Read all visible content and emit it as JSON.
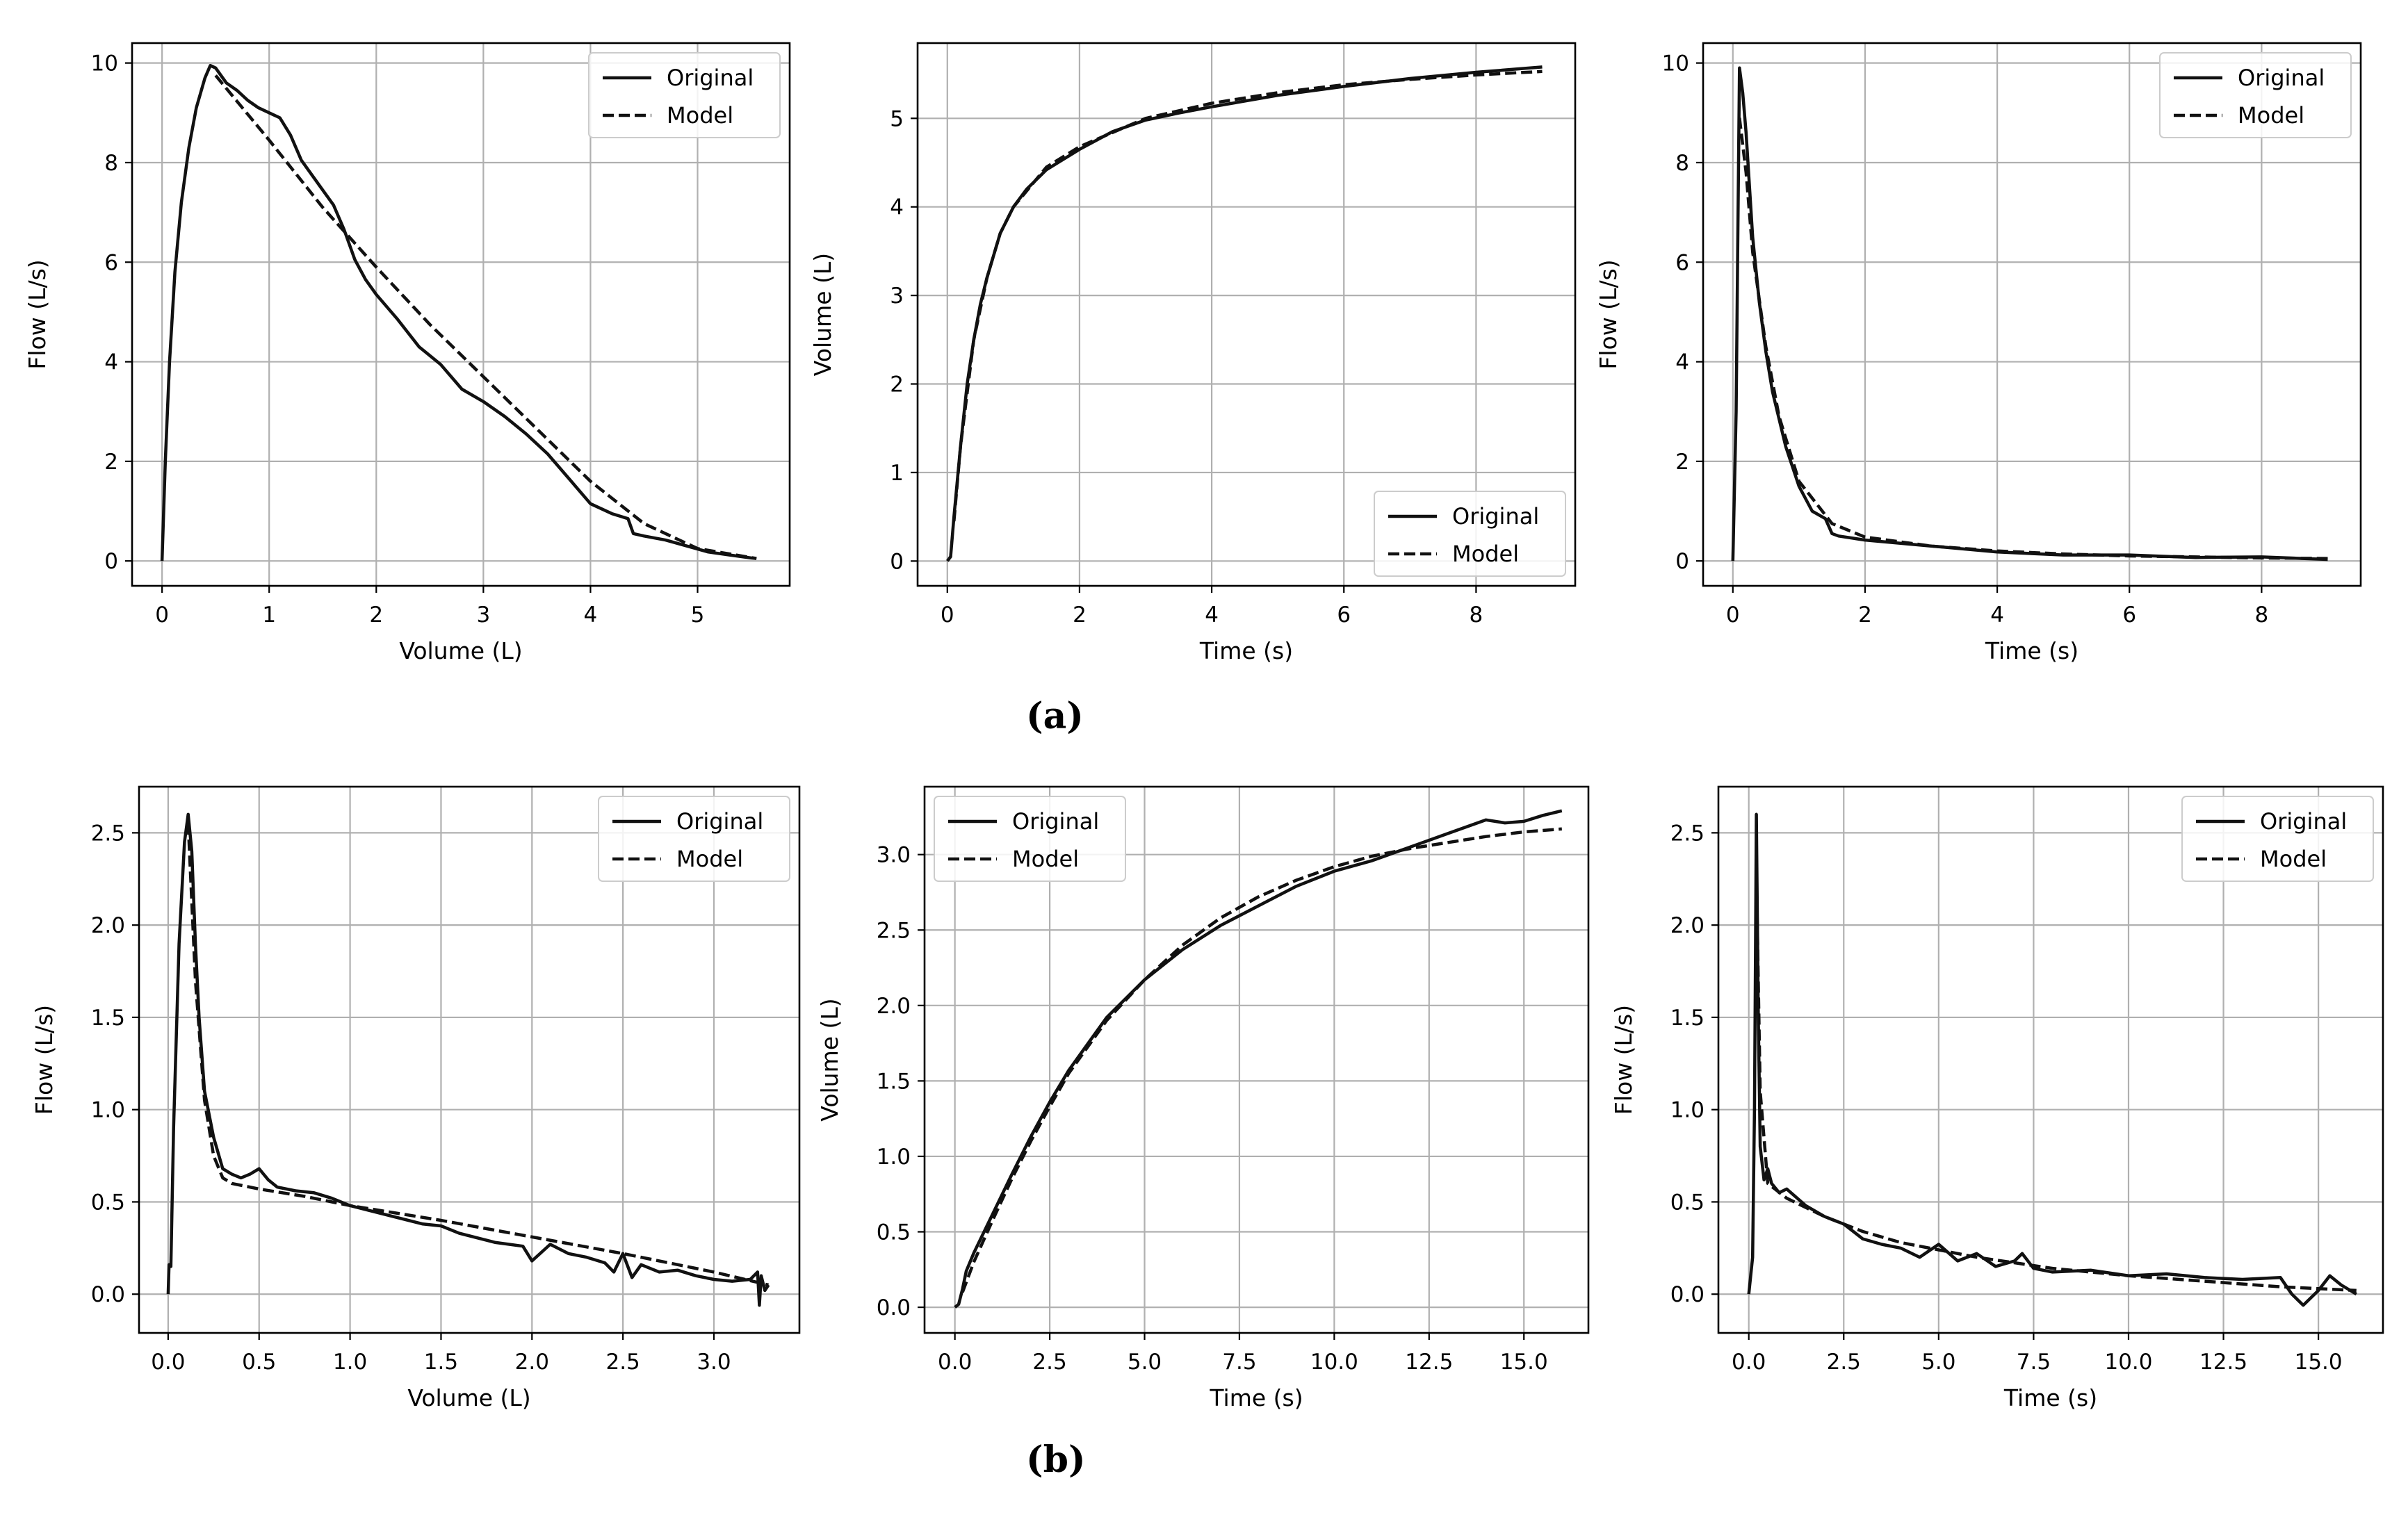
{
  "panel_labels": {
    "a": "(a)",
    "b": "(b)"
  },
  "colors": {
    "line": "#111111",
    "grid": "#b0b0b0",
    "axes": "#000000",
    "legend_border": "#cccccc"
  },
  "legend": {
    "original": "Original",
    "model": "Model"
  },
  "chart_data": [
    {
      "id": "a1",
      "type": "line",
      "xlabel": "Volume (L)",
      "ylabel": "Flow (L/s)",
      "xlim": [
        -0.28,
        5.86
      ],
      "ylim": [
        -0.5,
        10.4
      ],
      "xticks": [
        0,
        1,
        2,
        3,
        4,
        5
      ],
      "yticks": [
        0,
        2,
        4,
        6,
        8,
        10
      ],
      "xtick_labels": [
        "0",
        "1",
        "2",
        "3",
        "4",
        "5"
      ],
      "ytick_labels": [
        "0",
        "2",
        "4",
        "6",
        "8",
        "10"
      ],
      "legend_loc": "upper right",
      "series": [
        {
          "name": "Original",
          "style": "solid",
          "x": [
            0,
            0.03,
            0.07,
            0.12,
            0.18,
            0.25,
            0.32,
            0.4,
            0.45,
            0.5,
            0.6,
            0.7,
            0.8,
            0.9,
            1.0,
            1.1,
            1.2,
            1.3,
            1.4,
            1.5,
            1.6,
            1.7,
            1.8,
            1.9,
            2.0,
            2.2,
            2.4,
            2.6,
            2.8,
            3.0,
            3.2,
            3.4,
            3.6,
            3.8,
            4.0,
            4.2,
            4.35,
            4.4,
            4.5,
            4.7,
            4.9,
            5.1,
            5.3,
            5.5,
            5.55
          ],
          "y": [
            0,
            2.0,
            4.0,
            5.8,
            7.2,
            8.3,
            9.1,
            9.7,
            9.95,
            9.9,
            9.6,
            9.45,
            9.25,
            9.1,
            9.0,
            8.9,
            8.55,
            8.05,
            7.75,
            7.45,
            7.15,
            6.65,
            6.05,
            5.65,
            5.35,
            4.85,
            4.3,
            3.95,
            3.45,
            3.2,
            2.9,
            2.55,
            2.15,
            1.65,
            1.15,
            0.95,
            0.85,
            0.55,
            0.5,
            0.42,
            0.3,
            0.18,
            0.12,
            0.06,
            0.05
          ]
        },
        {
          "name": "Model",
          "style": "dashed",
          "x": [
            0.5,
            1.0,
            1.5,
            2.0,
            2.5,
            3.0,
            3.5,
            4.0,
            4.5,
            5.0,
            5.55
          ],
          "y": [
            9.75,
            8.45,
            7.1,
            5.9,
            4.75,
            3.7,
            2.65,
            1.6,
            0.75,
            0.25,
            0.05
          ]
        }
      ]
    },
    {
      "id": "a2",
      "type": "line",
      "xlabel": "Time (s)",
      "ylabel": "Volume (L)",
      "xlim": [
        -0.45,
        9.5
      ],
      "ylim": [
        -0.28,
        5.85
      ],
      "xticks": [
        0,
        2,
        4,
        6,
        8
      ],
      "yticks": [
        0,
        1,
        2,
        3,
        4,
        5
      ],
      "xtick_labels": [
        "0",
        "2",
        "4",
        "6",
        "8"
      ],
      "ytick_labels": [
        "0",
        "1",
        "2",
        "3",
        "4",
        "5"
      ],
      "legend_loc": "lower right",
      "series": [
        {
          "name": "Original",
          "style": "solid",
          "x": [
            0,
            0.05,
            0.1,
            0.2,
            0.3,
            0.4,
            0.5,
            0.6,
            0.8,
            1.0,
            1.2,
            1.5,
            2,
            2.5,
            3,
            3.5,
            4,
            5,
            6,
            7,
            8,
            9
          ],
          "y": [
            0,
            0.05,
            0.5,
            1.3,
            2.0,
            2.5,
            2.9,
            3.2,
            3.7,
            4.0,
            4.2,
            4.42,
            4.65,
            4.85,
            4.98,
            5.06,
            5.13,
            5.26,
            5.36,
            5.45,
            5.52,
            5.58
          ]
        },
        {
          "name": "Model",
          "style": "dashed",
          "x": [
            0.1,
            0.2,
            0.4,
            0.6,
            0.8,
            1.0,
            1.5,
            2,
            3,
            4,
            5,
            6,
            7,
            8,
            9
          ],
          "y": [
            0.45,
            1.3,
            2.5,
            3.2,
            3.7,
            4.0,
            4.45,
            4.68,
            5.0,
            5.17,
            5.29,
            5.38,
            5.44,
            5.49,
            5.53
          ]
        }
      ]
    },
    {
      "id": "a3",
      "type": "line",
      "xlabel": "Time (s)",
      "ylabel": "Flow (L/s)",
      "xlim": [
        -0.45,
        9.5
      ],
      "ylim": [
        -0.5,
        10.4
      ],
      "xticks": [
        0,
        2,
        4,
        6,
        8
      ],
      "yticks": [
        0,
        2,
        4,
        6,
        8,
        10
      ],
      "xtick_labels": [
        "0",
        "2",
        "4",
        "6",
        "8"
      ],
      "ytick_labels": [
        "0",
        "2",
        "4",
        "6",
        "8",
        "10"
      ],
      "legend_loc": "upper right",
      "series": [
        {
          "name": "Original",
          "style": "solid",
          "x": [
            0,
            0.05,
            0.1,
            0.15,
            0.2,
            0.3,
            0.4,
            0.5,
            0.6,
            0.8,
            1.0,
            1.2,
            1.4,
            1.5,
            1.6,
            2,
            3,
            4,
            5,
            6,
            7,
            8,
            9
          ],
          "y": [
            0,
            3,
            9.9,
            9.4,
            8.6,
            6.5,
            5.2,
            4.2,
            3.4,
            2.3,
            1.5,
            1.0,
            0.85,
            0.55,
            0.5,
            0.42,
            0.3,
            0.18,
            0.12,
            0.12,
            0.07,
            0.08,
            0.03
          ]
        },
        {
          "name": "Model",
          "style": "dashed",
          "x": [
            0.1,
            0.2,
            0.3,
            0.5,
            0.7,
            1.0,
            1.5,
            2,
            3,
            4,
            5,
            6,
            7,
            8,
            9
          ],
          "y": [
            8.9,
            7.8,
            6.2,
            4.3,
            2.9,
            1.6,
            0.75,
            0.48,
            0.3,
            0.2,
            0.14,
            0.1,
            0.08,
            0.06,
            0.05
          ]
        }
      ]
    },
    {
      "id": "b1",
      "type": "line",
      "xlabel": "Volume (L)",
      "ylabel": "Flow (L/s)",
      "xlim": [
        -0.16,
        3.47
      ],
      "ylim": [
        -0.21,
        2.75
      ],
      "xticks": [
        0,
        0.5,
        1.0,
        1.5,
        2.0,
        2.5,
        3.0
      ],
      "yticks": [
        0,
        0.5,
        1.0,
        1.5,
        2.0,
        2.5
      ],
      "xtick_labels": [
        "0.0",
        "0.5",
        "1.0",
        "1.5",
        "2.0",
        "2.5",
        "3.0"
      ],
      "ytick_labels": [
        "0.0",
        "0.5",
        "1.0",
        "1.5",
        "2.0",
        "2.5"
      ],
      "legend_loc": "upper right",
      "series": [
        {
          "name": "Original",
          "style": "solid",
          "x": [
            0,
            0.005,
            0.015,
            0.03,
            0.06,
            0.09,
            0.11,
            0.13,
            0.15,
            0.17,
            0.2,
            0.25,
            0.3,
            0.35,
            0.4,
            0.45,
            0.5,
            0.55,
            0.6,
            0.7,
            0.8,
            0.9,
            1.0,
            1.2,
            1.4,
            1.5,
            1.6,
            1.8,
            1.95,
            2.0,
            2.1,
            2.2,
            2.3,
            2.4,
            2.45,
            2.5,
            2.55,
            2.6,
            2.7,
            2.8,
            2.9,
            3.0,
            3.1,
            3.2,
            3.24,
            3.25,
            3.26,
            3.28,
            3.3
          ],
          "y": [
            0,
            0.16,
            0.15,
            0.9,
            1.9,
            2.45,
            2.6,
            2.4,
            1.9,
            1.5,
            1.1,
            0.85,
            0.68,
            0.65,
            0.63,
            0.65,
            0.68,
            0.62,
            0.58,
            0.56,
            0.55,
            0.52,
            0.48,
            0.43,
            0.38,
            0.37,
            0.33,
            0.28,
            0.26,
            0.18,
            0.27,
            0.22,
            0.2,
            0.17,
            0.12,
            0.22,
            0.09,
            0.16,
            0.12,
            0.13,
            0.1,
            0.08,
            0.07,
            0.08,
            0.12,
            -0.06,
            0.1,
            0.02,
            0.05
          ]
        },
        {
          "name": "Model",
          "style": "dashed",
          "x": [
            0.11,
            0.15,
            0.2,
            0.25,
            0.3,
            0.35,
            0.5,
            0.75,
            1.0,
            1.5,
            2.0,
            2.5,
            3.0,
            3.3
          ],
          "y": [
            2.55,
            1.7,
            1.05,
            0.75,
            0.63,
            0.6,
            0.57,
            0.53,
            0.48,
            0.4,
            0.31,
            0.22,
            0.12,
            0.05
          ]
        }
      ]
    },
    {
      "id": "b2",
      "type": "line",
      "xlabel": "Time (s)",
      "ylabel": "Volume (L)",
      "xlim": [
        -0.8,
        16.7
      ],
      "ylim": [
        -0.17,
        3.45
      ],
      "xticks": [
        0,
        2.5,
        5.0,
        7.5,
        10.0,
        12.5,
        15.0
      ],
      "yticks": [
        0,
        0.5,
        1.0,
        1.5,
        2.0,
        2.5,
        3.0
      ],
      "xtick_labels": [
        "0.0",
        "2.5",
        "5.0",
        "7.5",
        "10.0",
        "12.5",
        "15.0"
      ],
      "ytick_labels": [
        "0.0",
        "0.5",
        "1.0",
        "1.5",
        "2.0",
        "2.5",
        "3.0"
      ],
      "legend_loc": "upper left",
      "series": [
        {
          "name": "Original",
          "style": "solid",
          "x": [
            0,
            0.1,
            0.2,
            0.3,
            0.5,
            1,
            1.5,
            2,
            2.5,
            3,
            4,
            5,
            6,
            7,
            8,
            9,
            10,
            11,
            12,
            13,
            14,
            14.5,
            15,
            15.5,
            16
          ],
          "y": [
            0,
            0.02,
            0.12,
            0.24,
            0.36,
            0.62,
            0.88,
            1.13,
            1.36,
            1.57,
            1.92,
            2.17,
            2.37,
            2.53,
            2.66,
            2.79,
            2.89,
            2.96,
            3.05,
            3.14,
            3.23,
            3.21,
            3.22,
            3.26,
            3.29
          ]
        },
        {
          "name": "Model",
          "style": "dashed",
          "x": [
            0.2,
            0.5,
            1,
            1.5,
            2,
            2.5,
            3,
            4,
            5,
            6,
            7,
            8,
            9,
            10,
            11,
            12,
            13,
            14,
            15,
            16
          ],
          "y": [
            0.1,
            0.3,
            0.58,
            0.85,
            1.1,
            1.33,
            1.55,
            1.9,
            2.17,
            2.4,
            2.58,
            2.72,
            2.83,
            2.92,
            2.99,
            3.04,
            3.08,
            3.12,
            3.15,
            3.17
          ]
        }
      ]
    },
    {
      "id": "b3",
      "type": "line",
      "xlabel": "Time (s)",
      "ylabel": "Flow (L/s)",
      "xlim": [
        -0.8,
        16.7
      ],
      "ylim": [
        -0.21,
        2.75
      ],
      "xticks": [
        0,
        2.5,
        5.0,
        7.5,
        10.0,
        12.5,
        15.0
      ],
      "yticks": [
        0,
        0.5,
        1.0,
        1.5,
        2.0,
        2.5
      ],
      "xtick_labels": [
        "0.0",
        "2.5",
        "5.0",
        "7.5",
        "10.0",
        "12.5",
        "15.0"
      ],
      "ytick_labels": [
        "0.0",
        "0.5",
        "1.0",
        "1.5",
        "2.0",
        "2.5"
      ],
      "legend_loc": "upper right",
      "series": [
        {
          "name": "Original",
          "style": "solid",
          "x": [
            0,
            0.1,
            0.15,
            0.2,
            0.25,
            0.3,
            0.4,
            0.5,
            0.6,
            0.8,
            1,
            1.5,
            2,
            2.5,
            3,
            3.5,
            4,
            4.5,
            5,
            5.5,
            6,
            6.5,
            7,
            7.2,
            7.5,
            8,
            9,
            10,
            11,
            12,
            13,
            14,
            14.3,
            14.6,
            15,
            15.3,
            15.6,
            16
          ],
          "y": [
            0,
            0.2,
            1.0,
            2.6,
            1.5,
            0.8,
            0.62,
            0.68,
            0.6,
            0.55,
            0.57,
            0.48,
            0.42,
            0.38,
            0.3,
            0.27,
            0.25,
            0.2,
            0.27,
            0.18,
            0.22,
            0.15,
            0.18,
            0.22,
            0.14,
            0.12,
            0.13,
            0.1,
            0.11,
            0.09,
            0.08,
            0.09,
            0.0,
            -0.06,
            0.02,
            0.1,
            0.05,
            0.0
          ]
        },
        {
          "name": "Model",
          "style": "dashed",
          "x": [
            0.2,
            0.3,
            0.5,
            1,
            2,
            3,
            4,
            5,
            6,
            8,
            10,
            12,
            14,
            16
          ],
          "y": [
            2.3,
            1.1,
            0.6,
            0.52,
            0.42,
            0.34,
            0.28,
            0.24,
            0.2,
            0.14,
            0.1,
            0.07,
            0.04,
            0.02
          ]
        }
      ]
    }
  ]
}
